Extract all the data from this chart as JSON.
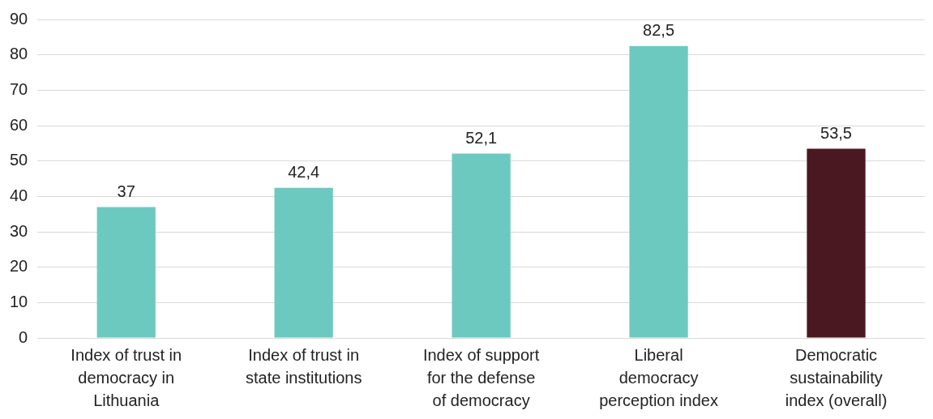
{
  "chart_data": {
    "type": "bar",
    "categories": [
      "Index of trust in democracy in Lithuania",
      "Index of trust in state institutions",
      "Index of support for the defense of democracy",
      "Liberal democracy perception index",
      "Democratic sustainability index (overall)"
    ],
    "values": [
      37,
      42.4,
      52.1,
      82.5,
      53.5
    ],
    "colors": [
      "#6cc9c0",
      "#6cc9c0",
      "#6cc9c0",
      "#6cc9c0",
      "#4a1820"
    ],
    "value_labels": [
      "37",
      "42,4",
      "52,1",
      "82,5",
      "53,5"
    ],
    "ylim": [
      0,
      90
    ],
    "yticks": [
      0,
      10,
      20,
      30,
      40,
      50,
      60,
      70,
      80,
      90
    ],
    "grid": "y",
    "legend": false
  }
}
